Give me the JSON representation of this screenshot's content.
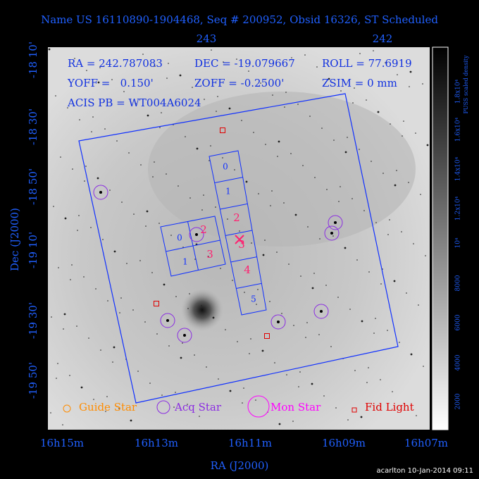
{
  "header": {
    "title": "Name US 16110890-1904468, Seq # 200952, Obsid 16326, ST Scheduled"
  },
  "top_axis": {
    "labels": [
      "243",
      "242"
    ]
  },
  "info": {
    "ra": "RA = 242.787083",
    "dec": "DEC = -19.079667",
    "roll": "ROLL = 77.6919",
    "yoff": "YOFF =   0.150'",
    "zoff": "ZOFF = -0.2500'",
    "zsim": "ZSIM = 0 mm",
    "acis": "ACIS PB = WT004A6024"
  },
  "y_axis": {
    "title": "Dec (J2000)",
    "labels": [
      "-18 10'",
      "-18 30'",
      "-18 50'",
      "-19 10'",
      "-19 30'",
      "-19 50'"
    ]
  },
  "x_axis": {
    "title": "RA (J2000)",
    "labels": [
      "16h15m",
      "16h13m",
      "16h11m",
      "16h09m",
      "16h07m"
    ]
  },
  "colorbar": {
    "title": "PUSS scaled density",
    "labels": [
      "2000",
      "4000",
      "6000",
      "8000",
      "10⁴",
      "1.2x10⁴",
      "1.4x10⁴",
      "1.6x10⁴",
      "1.8x10⁴"
    ]
  },
  "chips": {
    "acis_i": [
      "0",
      "1",
      "2",
      "3"
    ],
    "acis_s": [
      "0",
      "1",
      "2",
      "3",
      "4",
      "5"
    ]
  },
  "legend": [
    "Guide Star",
    "Acq Star",
    "Mon Star",
    "Fid Light"
  ],
  "footer": "acarlton 10-Jan-2014 09:11"
}
